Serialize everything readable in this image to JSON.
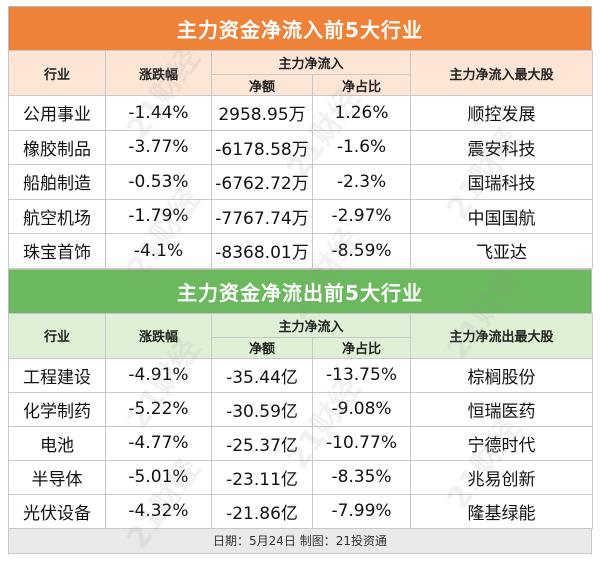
{
  "inflow": {
    "title": "主力资金净流入前5大行业",
    "headers": {
      "industry": "行业",
      "change": "涨跌幅",
      "group": "主力净流入",
      "net": "净额",
      "ratio": "净占比",
      "top_stock": "主力净流入最大股"
    },
    "rows": [
      {
        "industry": "公用事业",
        "change": "-1.44%",
        "net": "2958.95万",
        "ratio": "1.26%",
        "top_stock": "顺控发展"
      },
      {
        "industry": "橡胶制品",
        "change": "-3.77%",
        "net": "-6178.58万",
        "ratio": "-1.6%",
        "top_stock": "震安科技"
      },
      {
        "industry": "船舶制造",
        "change": "-0.53%",
        "net": "-6762.72万",
        "ratio": "-2.3%",
        "top_stock": "国瑞科技"
      },
      {
        "industry": "航空机场",
        "change": "-1.79%",
        "net": "-7767.74万",
        "ratio": "-2.97%",
        "top_stock": "中国国航"
      },
      {
        "industry": "珠宝首饰",
        "change": "-4.1%",
        "net": "-8368.01万",
        "ratio": "-8.59%",
        "top_stock": "飞亚达"
      }
    ]
  },
  "outflow": {
    "title": "主力资金净流出前5大行业",
    "headers": {
      "industry": "行业",
      "change": "涨跌幅",
      "group": "主力净流入",
      "net": "净额",
      "ratio": "净占比",
      "top_stock": "主力净流出最大股"
    },
    "rows": [
      {
        "industry": "工程建设",
        "change": "-4.91%",
        "net": "-35.44亿",
        "ratio": "-13.75%",
        "top_stock": "棕榈股份"
      },
      {
        "industry": "化学制药",
        "change": "-5.22%",
        "net": "-30.59亿",
        "ratio": "-9.08%",
        "top_stock": "恒瑞医药"
      },
      {
        "industry": "电池",
        "change": "-4.77%",
        "net": "-25.37亿",
        "ratio": "-10.77%",
        "top_stock": "宁德时代"
      },
      {
        "industry": "半导体",
        "change": "-5.01%",
        "net": "-23.11亿",
        "ratio": "-8.35%",
        "top_stock": "兆易创新"
      },
      {
        "industry": "光伏设备",
        "change": "-4.32%",
        "net": "-21.86亿",
        "ratio": "-7.99%",
        "top_stock": "隆基绿能"
      }
    ]
  },
  "footer": "日期：5月24日 制图：21投资通",
  "watermark": "21财经",
  "colors": {
    "inflow_banner": "#ee8238",
    "outflow_banner": "#6bb85e",
    "inflow_header_bg": "#fde6d6",
    "outflow_header_bg": "#dff0d6"
  }
}
